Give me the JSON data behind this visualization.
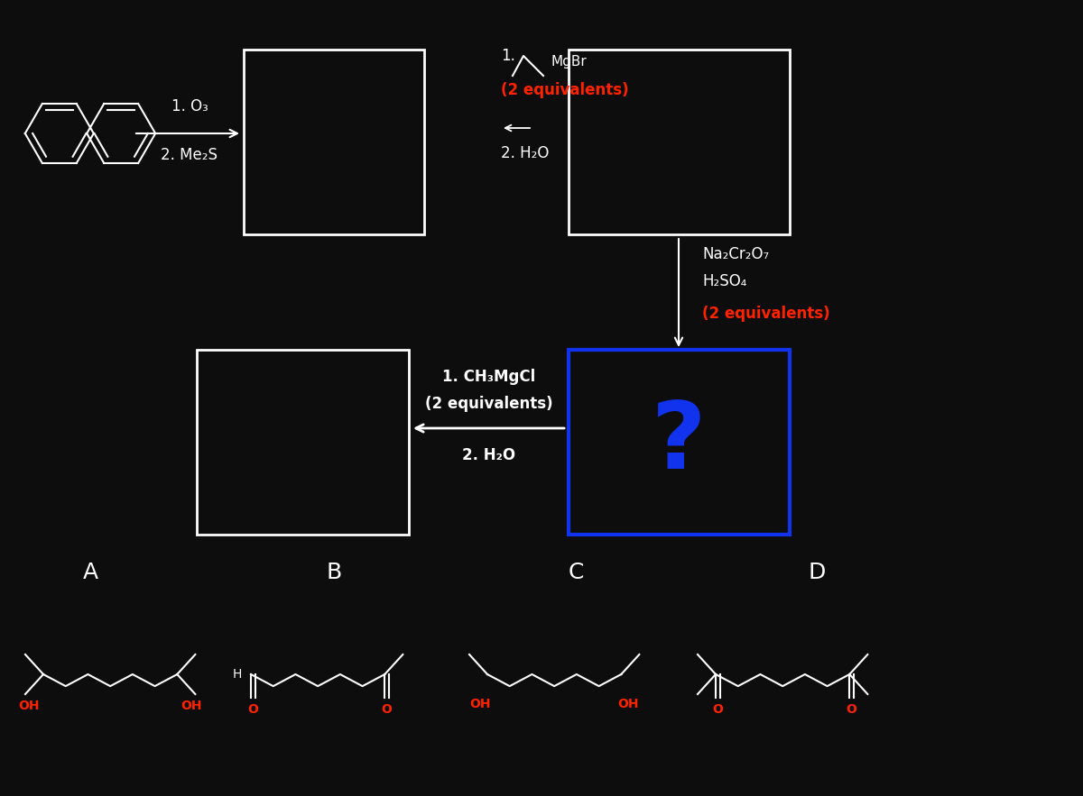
{
  "bg": "#0d0d0d",
  "white": "#ffffff",
  "red": "#ff2200",
  "blue": "#1133ee",
  "fig_w": 12.0,
  "fig_h": 8.83,
  "dpi": 100,
  "step1_label": "1. O₃",
  "step2_label": "2. Me₂S",
  "grignard1_equiv": "(2 equivalents)",
  "grignard1_step2": "2. H₂O",
  "oxidant_line1": "Na₂Cr₂O₇",
  "oxidant_line2": "H₂SO₄",
  "oxidant_equiv": "(2 equivalents)",
  "grignard2_line1": "1. CH₃MgCl",
  "grignard2_line2": "(2 equivalents)",
  "grignard2_step2": "2. H₂O",
  "label_A": "A",
  "label_B": "B",
  "label_C": "C",
  "label_D": "D",
  "question_mark": "?"
}
